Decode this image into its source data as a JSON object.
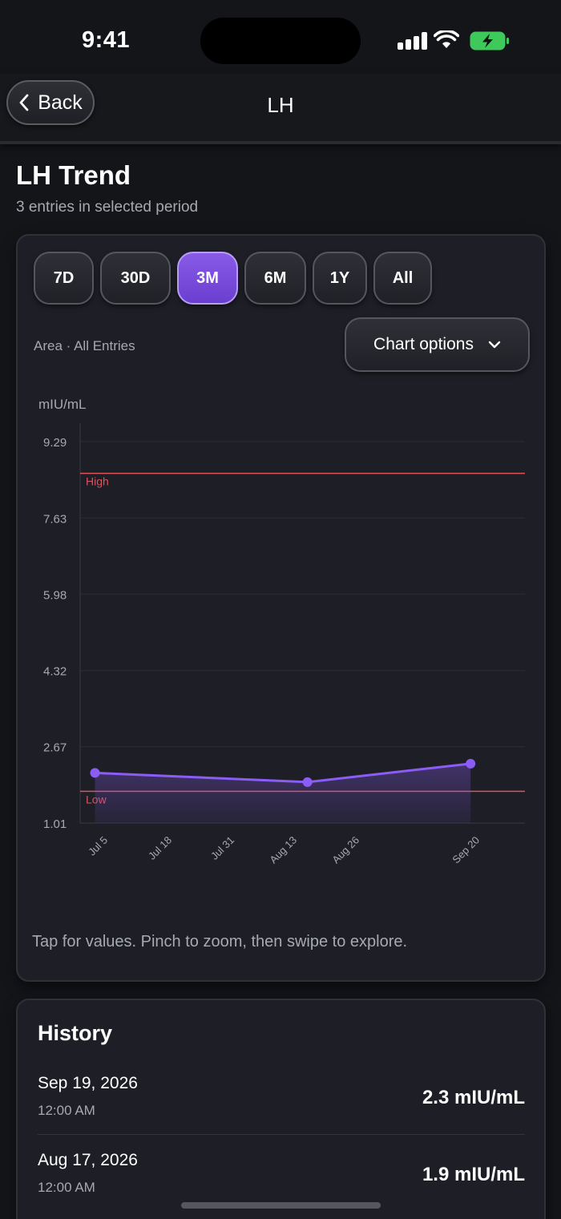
{
  "status": {
    "time": "9:41"
  },
  "nav": {
    "back_label": "Back",
    "title": "LH"
  },
  "page": {
    "title": "LH Trend",
    "subtitle": "3 entries in selected period"
  },
  "ranges": [
    {
      "label": "7D",
      "active": false
    },
    {
      "label": "30D",
      "active": false
    },
    {
      "label": "3M",
      "active": true
    },
    {
      "label": "6M",
      "active": false
    },
    {
      "label": "1Y",
      "active": false
    },
    {
      "label": "All",
      "active": false
    }
  ],
  "chart_meta": "Area · All Entries",
  "chart_options_label": "Chart options",
  "chart_hint": "Tap for values. Pinch to zoom, then swipe to explore.",
  "colors": {
    "accent": "#8b5cf6",
    "reference_line": "#d9535d",
    "background": "#141519",
    "card": "#1e1f26"
  },
  "chart_data": {
    "type": "area",
    "ylabel": "mIU/mL",
    "ylim": [
      1.01,
      9.29
    ],
    "y_ticks": [
      "9.29",
      "7.63",
      "5.98",
      "4.32",
      "2.67",
      "1.01"
    ],
    "x_ticks": [
      "Jul 5",
      "Jul 18",
      "Jul 31",
      "Aug 13",
      "Aug 26",
      "Sep 20"
    ],
    "x_range": [
      "2026-07-02",
      "2026-09-30"
    ],
    "series": [
      {
        "x": [
          "2026-07-05",
          "2026-08-17",
          "2026-09-19"
        ],
        "values": [
          2.1,
          1.9,
          2.3
        ]
      }
    ],
    "reference_lines": [
      {
        "label": "High",
        "value": 8.6
      },
      {
        "label": "Low",
        "value": 1.7
      }
    ],
    "grid": true
  },
  "history": {
    "title": "History",
    "entries": [
      {
        "date": "Sep 19, 2026",
        "time": "12:00 AM",
        "value": "2.3 mIU/mL"
      },
      {
        "date": "Aug 17, 2026",
        "time": "12:00 AM",
        "value": "1.9 mIU/mL"
      }
    ]
  }
}
